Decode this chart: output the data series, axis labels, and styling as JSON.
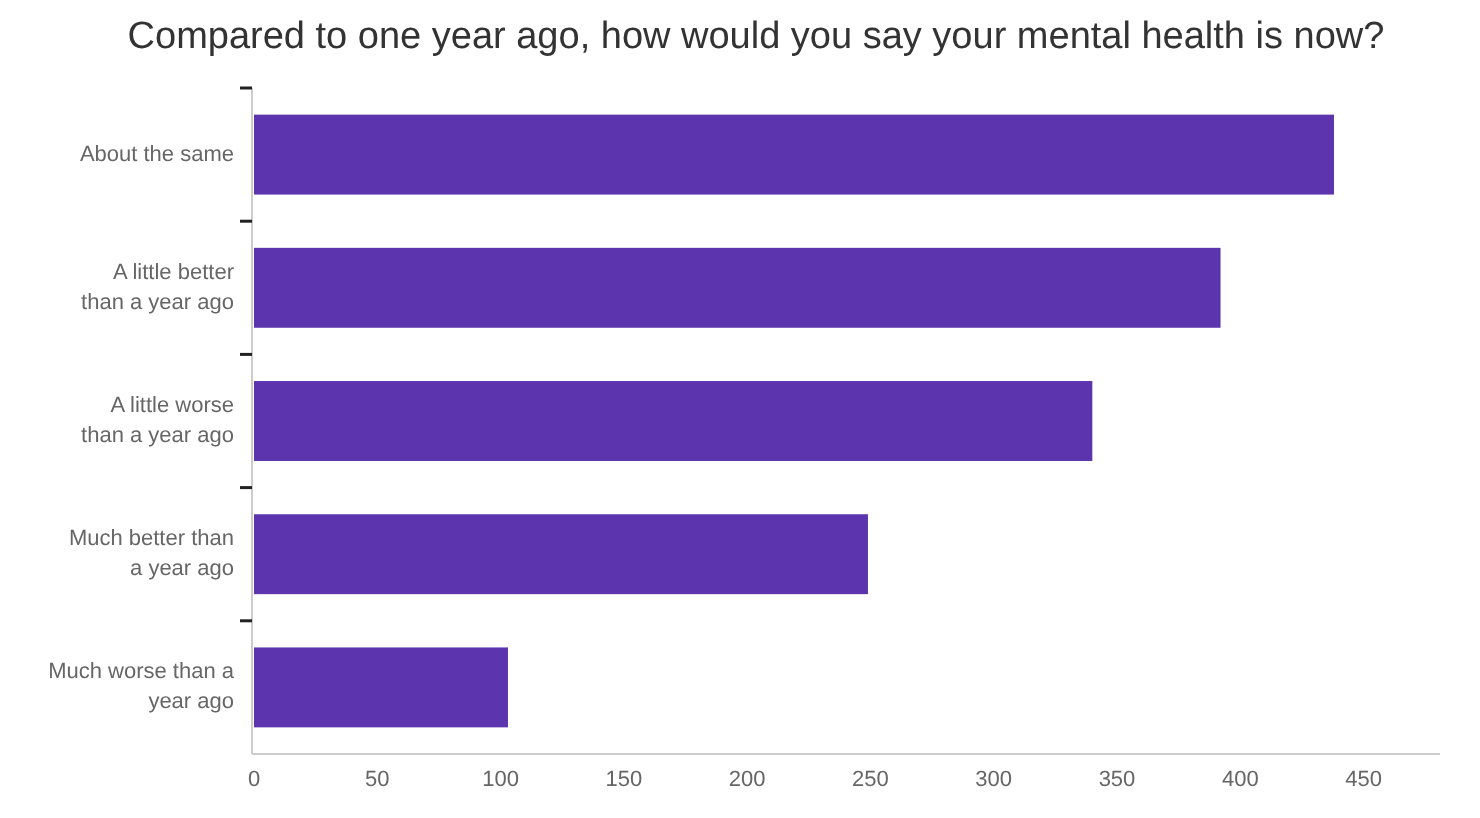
{
  "chart_data": {
    "type": "bar",
    "orientation": "horizontal",
    "title": "Compared to one year ago, how would you say your mental health is now?",
    "categories": [
      "About the same",
      "A little better than a year ago",
      "A little worse than a year ago",
      "Much better than a year ago",
      "Much worse than a year ago"
    ],
    "values": [
      438,
      392,
      340,
      249,
      103
    ],
    "color": "#5c35ae",
    "xlim": [
      0,
      481
    ],
    "xticks": [
      0,
      50,
      100,
      150,
      200,
      250,
      300,
      350,
      400,
      450
    ],
    "grid": false
  }
}
